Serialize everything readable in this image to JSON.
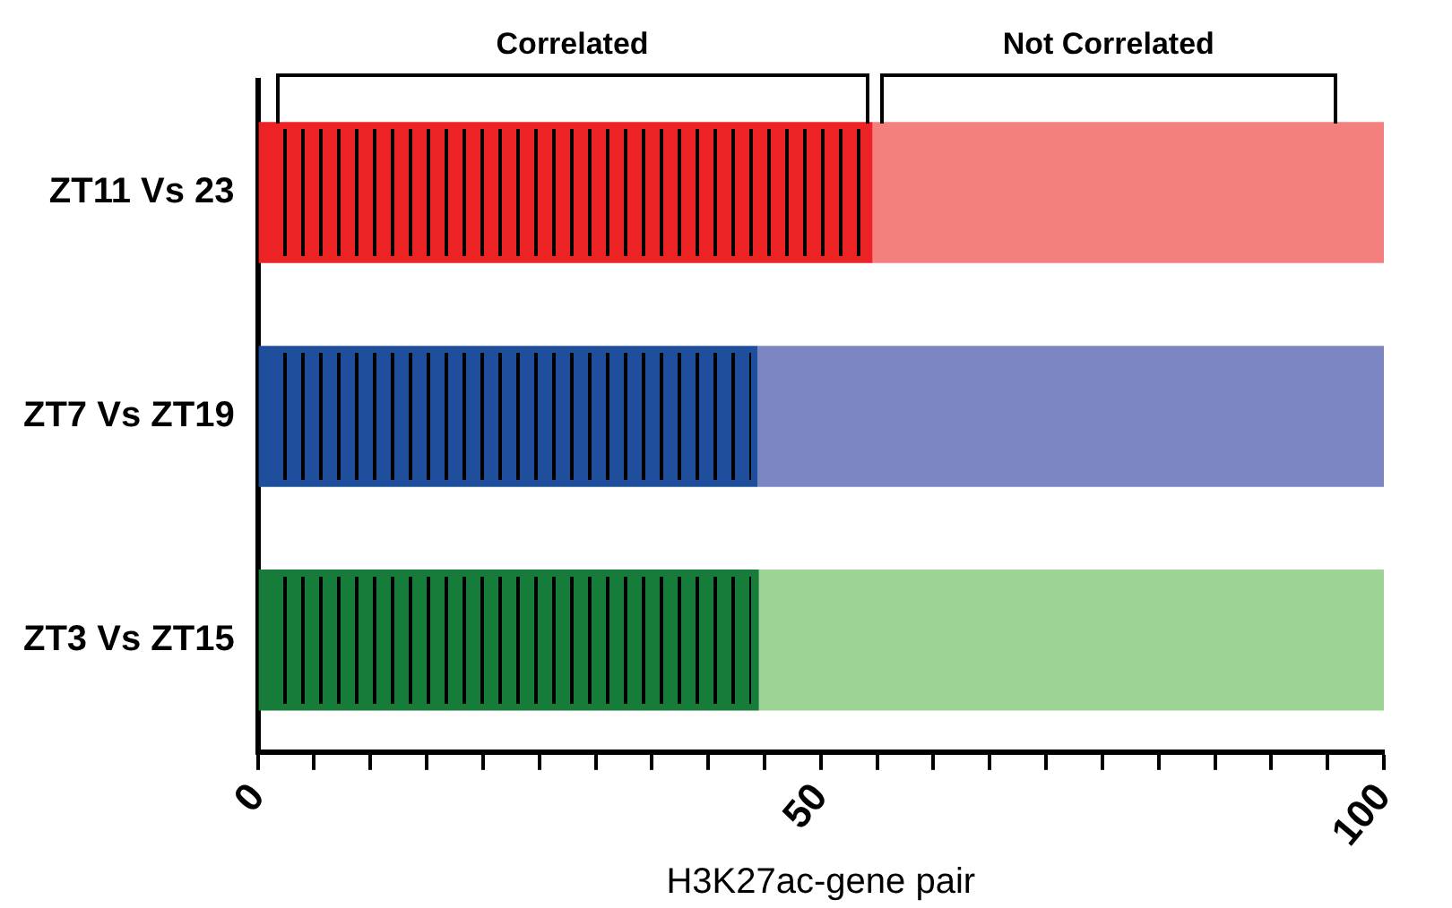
{
  "chart_data": {
    "type": "bar",
    "orientation": "horizontal",
    "stacked": true,
    "categories": [
      "ZT11 Vs 23",
      "ZT7 Vs ZT19",
      "ZT3 Vs ZT15"
    ],
    "series": [
      {
        "values": [
          54.6,
          44.4,
          44.5
        ],
        "colors": [
          "#ed2224",
          "#1f4e9c",
          "#177c3a"
        ]
      },
      {
        "values": [
          45.4,
          55.6,
          55.5
        ],
        "colors": [
          "#f47f7f",
          "#7b86c2",
          "#9dd394"
        ]
      }
    ],
    "xlabel": "H3K27ac-gene pair",
    "xlim": [
      0,
      100
    ],
    "xticks": [
      0,
      {
        "value": 5,
        "label": null
      },
      {
        "value": 10,
        "label": null
      },
      {
        "value": 15,
        "label": null
      },
      {
        "value": 20,
        "label": null
      },
      {
        "value": 25,
        "label": null
      },
      {
        "value": 30,
        "label": null
      },
      {
        "value": 35,
        "label": null
      },
      {
        "value": 40,
        "label": null
      },
      {
        "value": 45,
        "label": null
      },
      50,
      {
        "value": 55,
        "label": null
      },
      {
        "value": 60,
        "label": null
      },
      {
        "value": 65,
        "label": null
      },
      {
        "value": 70,
        "label": null
      },
      {
        "value": 75,
        "label": null
      },
      {
        "value": 80,
        "label": null
      },
      {
        "value": 85,
        "label": null
      },
      {
        "value": 90,
        "label": null
      },
      {
        "value": 95,
        "label": null
      },
      100
    ],
    "annotations": [
      "Correlated",
      "Not Correlated"
    ],
    "grid": false,
    "legend": false
  }
}
